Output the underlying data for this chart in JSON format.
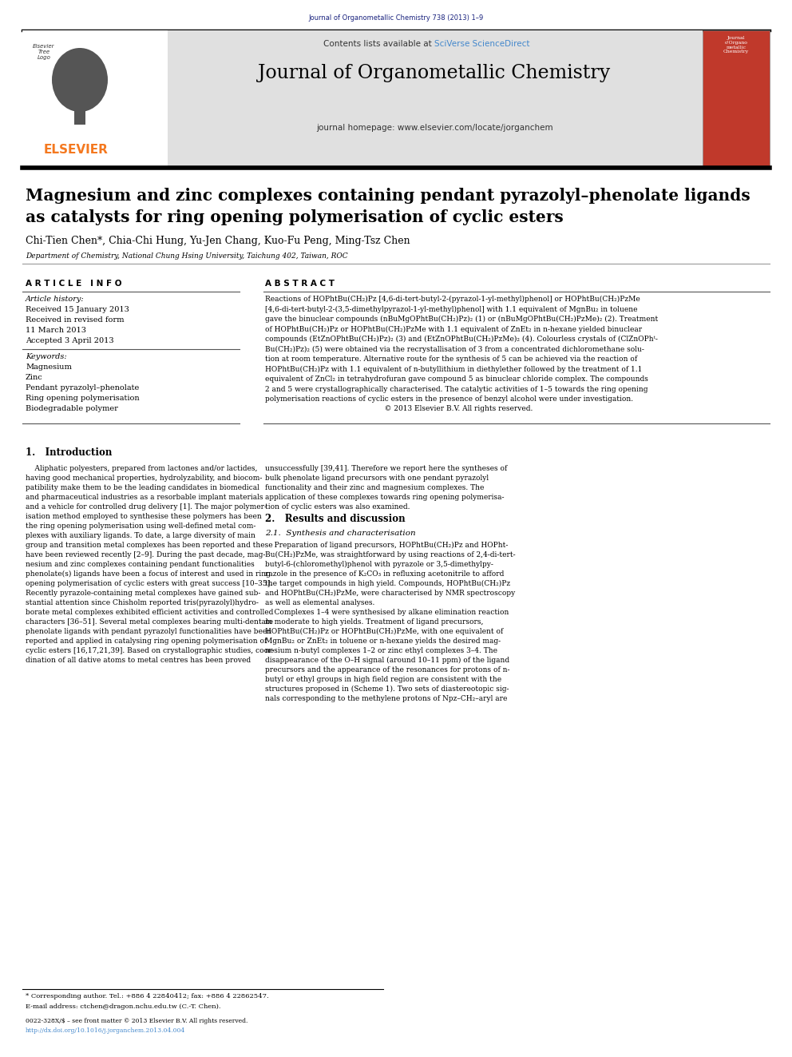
{
  "page_width": 9.92,
  "page_height": 13.23,
  "dpi": 100,
  "background_color": "#ffffff",
  "header_bg_color": "#e0e0e0",
  "elsevier_orange": "#f47920",
  "link_blue": "#4488cc",
  "dark_blue": "#1a237e",
  "journal_citation": "Journal of Organometallic Chemistry 738 (2013) 1–9",
  "contents_text": "Contents lists available at ",
  "sciverse_text": "SciVerse ScienceDirect",
  "journal_title": "Journal of Organometallic Chemistry",
  "homepage_text": "journal homepage: www.elsevier.com/locate/jorganchem",
  "elsevier_text": "ELSEVIER",
  "article_title_line1": "Magnesium and zinc complexes containing pendant pyrazolyl–phenolate ligands",
  "article_title_line2": "as catalysts for ring opening polymerisation of cyclic esters",
  "authors": "Chi-Tien Chen*, Chia-Chi Hung, Yu-Jen Chang, Kuo-Fu Peng, Ming-Tsz Chen",
  "affiliation": "Department of Chemistry, National Chung Hsing University, Taichung 402, Taiwan, ROC",
  "article_info_title": "A R T I C L E   I N F O",
  "abstract_title": "A B S T R A C T",
  "article_history_label": "Article history:",
  "received": "Received 15 January 2013",
  "revised": "Received in revised form",
  "revised2": "11 March 2013",
  "accepted": "Accepted 3 April 2013",
  "keywords_label": "Keywords:",
  "keywords": [
    "Magnesium",
    "Zinc",
    "Pendant pyrazolyl–phenolate",
    "Ring opening polymerisation",
    "Biodegradable polymer"
  ],
  "footnote_star": "* Corresponding author. Tel.: +886 4 22840412; fax: +886 4 22862547.",
  "footnote_email": "E-mail address: ctchen@dragon.nchu.edu.tw (C.-T. Chen).",
  "footnote_issn": "0022-328X/$ – see front matter © 2013 Elsevier B.V. All rights reserved.",
  "footnote_doi": "http://dx.doi.org/10.1016/j.jorganchem.2013.04.004"
}
